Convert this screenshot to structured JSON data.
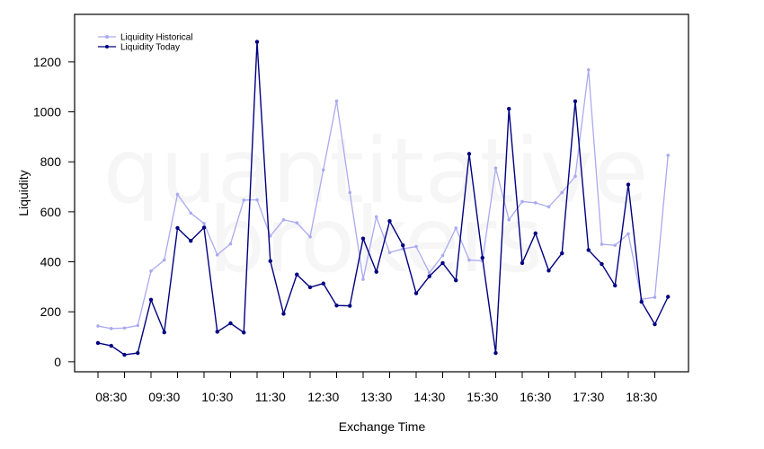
{
  "watermark": {
    "line1": "quantitative",
    "line2": "brokers"
  },
  "chart_data": {
    "type": "line",
    "xlabel": "Exchange Time",
    "ylabel": "Liquidity",
    "ylim": [
      -40,
      1390
    ],
    "yticks": [
      0,
      200,
      400,
      600,
      800,
      1000,
      1200
    ],
    "x": [
      "08:15",
      "08:30",
      "08:45",
      "09:00",
      "09:15",
      "09:30",
      "09:45",
      "10:00",
      "10:15",
      "10:30",
      "10:45",
      "11:00",
      "11:15",
      "11:30",
      "11:45",
      "12:00",
      "12:15",
      "12:30",
      "12:45",
      "13:00",
      "13:15",
      "13:30",
      "13:45",
      "14:00",
      "14:15",
      "14:30",
      "14:45",
      "15:00",
      "15:15",
      "15:30",
      "15:45",
      "16:00",
      "16:15",
      "16:30",
      "16:45",
      "17:00",
      "17:15",
      "17:30",
      "17:45",
      "18:00",
      "18:15",
      "18:30",
      "18:45",
      "19:00"
    ],
    "xtick_labels": [
      "08:30",
      "09:30",
      "10:30",
      "11:30",
      "12:30",
      "13:30",
      "14:30",
      "15:30",
      "16:30",
      "17:30",
      "18:30"
    ],
    "grid": false,
    "legend_position": "top-left",
    "series": [
      {
        "name": "Liquidity Historical",
        "color": "#aaaaf0",
        "values": [
          143,
          133,
          135,
          145,
          363,
          407,
          670,
          595,
          553,
          428,
          472,
          647,
          648,
          503,
          568,
          556,
          500,
          768,
          1043,
          677,
          330,
          580,
          437,
          452,
          461,
          356,
          425,
          535,
          407,
          404,
          775,
          568,
          641,
          636,
          620,
          677,
          742,
          1168,
          470,
          466,
          512,
          250,
          258,
          826
        ]
      },
      {
        "name": "Liquidity Today",
        "color": "#000080",
        "values": [
          75,
          64,
          28,
          35,
          248,
          118,
          535,
          484,
          537,
          120,
          154,
          117,
          1280,
          403,
          192,
          349,
          298,
          313,
          225,
          224,
          493,
          360,
          563,
          466,
          274,
          342,
          395,
          326,
          832,
          416,
          35,
          1012,
          395,
          514,
          365,
          434,
          1042,
          447,
          391,
          305,
          709,
          240,
          150,
          260
        ]
      }
    ]
  }
}
